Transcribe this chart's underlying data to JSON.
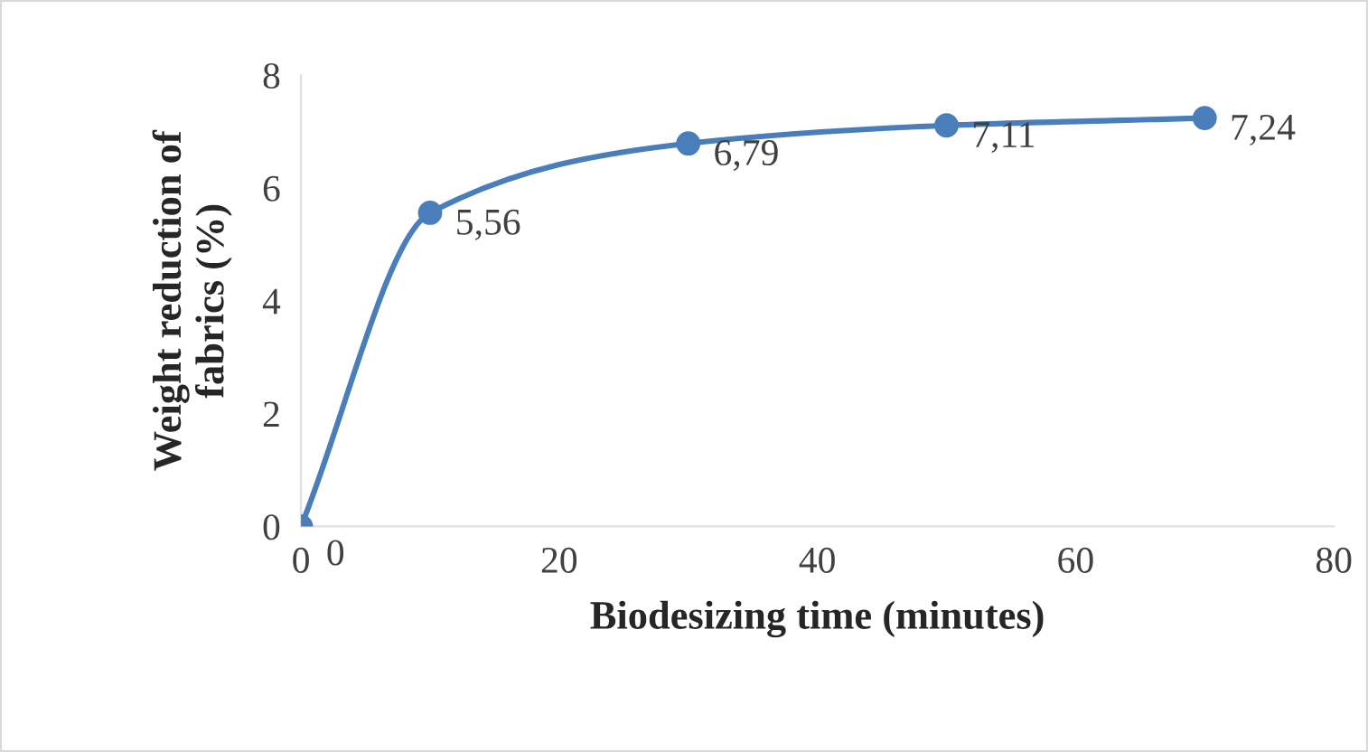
{
  "chart_data": {
    "type": "line",
    "xlabel": "Biodesizing time (minutes)",
    "ylabel": "Weight reduction of\nfabrics (%)",
    "x": [
      0,
      10,
      30,
      50,
      70
    ],
    "series": [
      {
        "color": "#4a7ebb",
        "values": [
          0,
          5.56,
          6.79,
          7.11,
          7.24
        ],
        "value_labels": [
          "0",
          "5,56",
          "6,79",
          "7,11",
          "7,24"
        ]
      }
    ],
    "xlim": [
      0,
      80
    ],
    "xticks": [
      0,
      20,
      40,
      60,
      80
    ],
    "ylim": [
      0,
      8
    ],
    "yticks": [
      0,
      2,
      4,
      6,
      8
    ],
    "grid": false,
    "marker": "circle",
    "line_style": "solid"
  }
}
